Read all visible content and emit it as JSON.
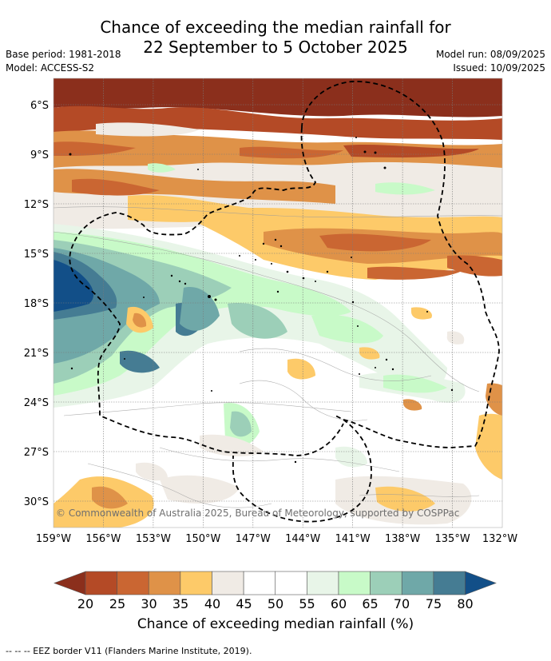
{
  "title_line1": "Chance of exceeding the median rainfall for",
  "title_line2": "22 September to 5 October 2025",
  "base_period": "Base period: 1981-2018",
  "model": "Model: ACCESS-S2",
  "model_run": "Model run: 08/09/2025",
  "issued": "Issued: 10/09/2025",
  "copyright": "© Commonwealth of Australia 2025, Bureau of Meteorology, supported by COSPPac",
  "lat_labels": [
    "6°S",
    "9°S",
    "12°S",
    "15°S",
    "18°S",
    "21°S",
    "24°S",
    "27°S",
    "30°S"
  ],
  "lon_labels": [
    "159°W",
    "156°W",
    "153°W",
    "150°W",
    "147°W",
    "144°W",
    "141°W",
    "138°W",
    "135°W",
    "132°W"
  ],
  "colorbar": {
    "label": "Chance of exceeding median rainfall (%)",
    "ticks": [
      "20",
      "25",
      "30",
      "35",
      "40",
      "45",
      "50",
      "55",
      "60",
      "65",
      "70",
      "75",
      "80"
    ],
    "colors": [
      "#8b2f1c",
      "#b44a26",
      "#ca6632",
      "#df9248",
      "#fdca69",
      "#f0ebe5",
      "#ffffff",
      "#ffffff",
      "#e8f5e8",
      "#c8fac8",
      "#9ccfb8",
      "#6fa8a8",
      "#457c93",
      "#124f88"
    ]
  },
  "footnote": "--  --  -- EEZ border V11 (Flanders Marine Institute, 2019).",
  "map": {
    "lat_range": [
      4.8,
      31.8
    ],
    "lon_range": [
      -159,
      -132
    ]
  }
}
